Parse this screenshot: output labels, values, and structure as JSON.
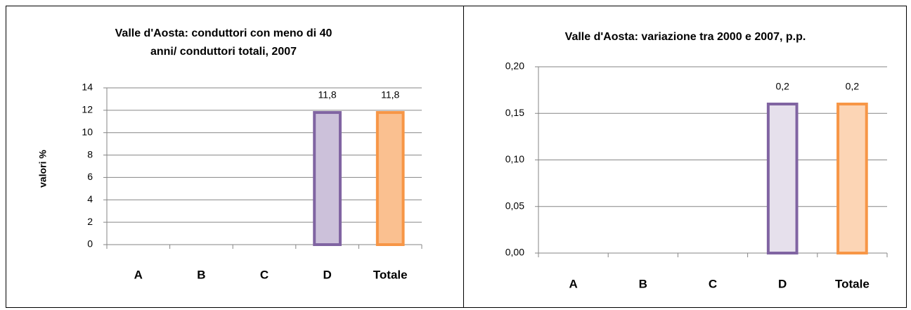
{
  "chart_data": [
    {
      "type": "bar",
      "title": [
        "Valle d'Aosta: conduttori con meno di 40",
        "anni/ conduttori  totali, 2007"
      ],
      "y_label": "valori %",
      "categories": [
        "A",
        "B",
        "C",
        "D",
        "Totale"
      ],
      "values": [
        null,
        null,
        null,
        11.8,
        11.8
      ],
      "value_labels": [
        null,
        null,
        null,
        "11,8",
        "11,8"
      ],
      "colors": [
        null,
        null,
        null,
        "#ccc1da",
        "#fac090"
      ],
      "edge_colors": [
        null,
        null,
        null,
        "#8064a2",
        "#f79646"
      ],
      "ylim": [
        0,
        14
      ],
      "yticks": [
        0,
        2,
        4,
        6,
        8,
        10,
        12,
        14
      ],
      "grid": true
    },
    {
      "type": "bar",
      "title": [
        "Valle d'Aosta: variazione tra 2000 e 2007, p.p."
      ],
      "categories": [
        "A",
        "B",
        "C",
        "D",
        "Totale"
      ],
      "values": [
        null,
        null,
        null,
        0.16,
        0.16
      ],
      "value_labels": [
        null,
        null,
        null,
        "0,2",
        "0,2"
      ],
      "colors": [
        null,
        null,
        null,
        "#e6e0ec",
        "#fcd5b5"
      ],
      "edge_colors": [
        null,
        null,
        null,
        "#8064a2",
        "#f79646"
      ],
      "ylim": [
        0,
        0.2
      ],
      "yticks": [
        {
          "value": 0,
          "label": "0,00"
        },
        {
          "value": 0.05,
          "label": "0,05"
        },
        {
          "value": 0.1,
          "label": "0,10"
        },
        {
          "value": 0.15,
          "label": "0,15"
        },
        {
          "value": 0.2,
          "label": "0,20"
        }
      ],
      "grid": true
    }
  ]
}
